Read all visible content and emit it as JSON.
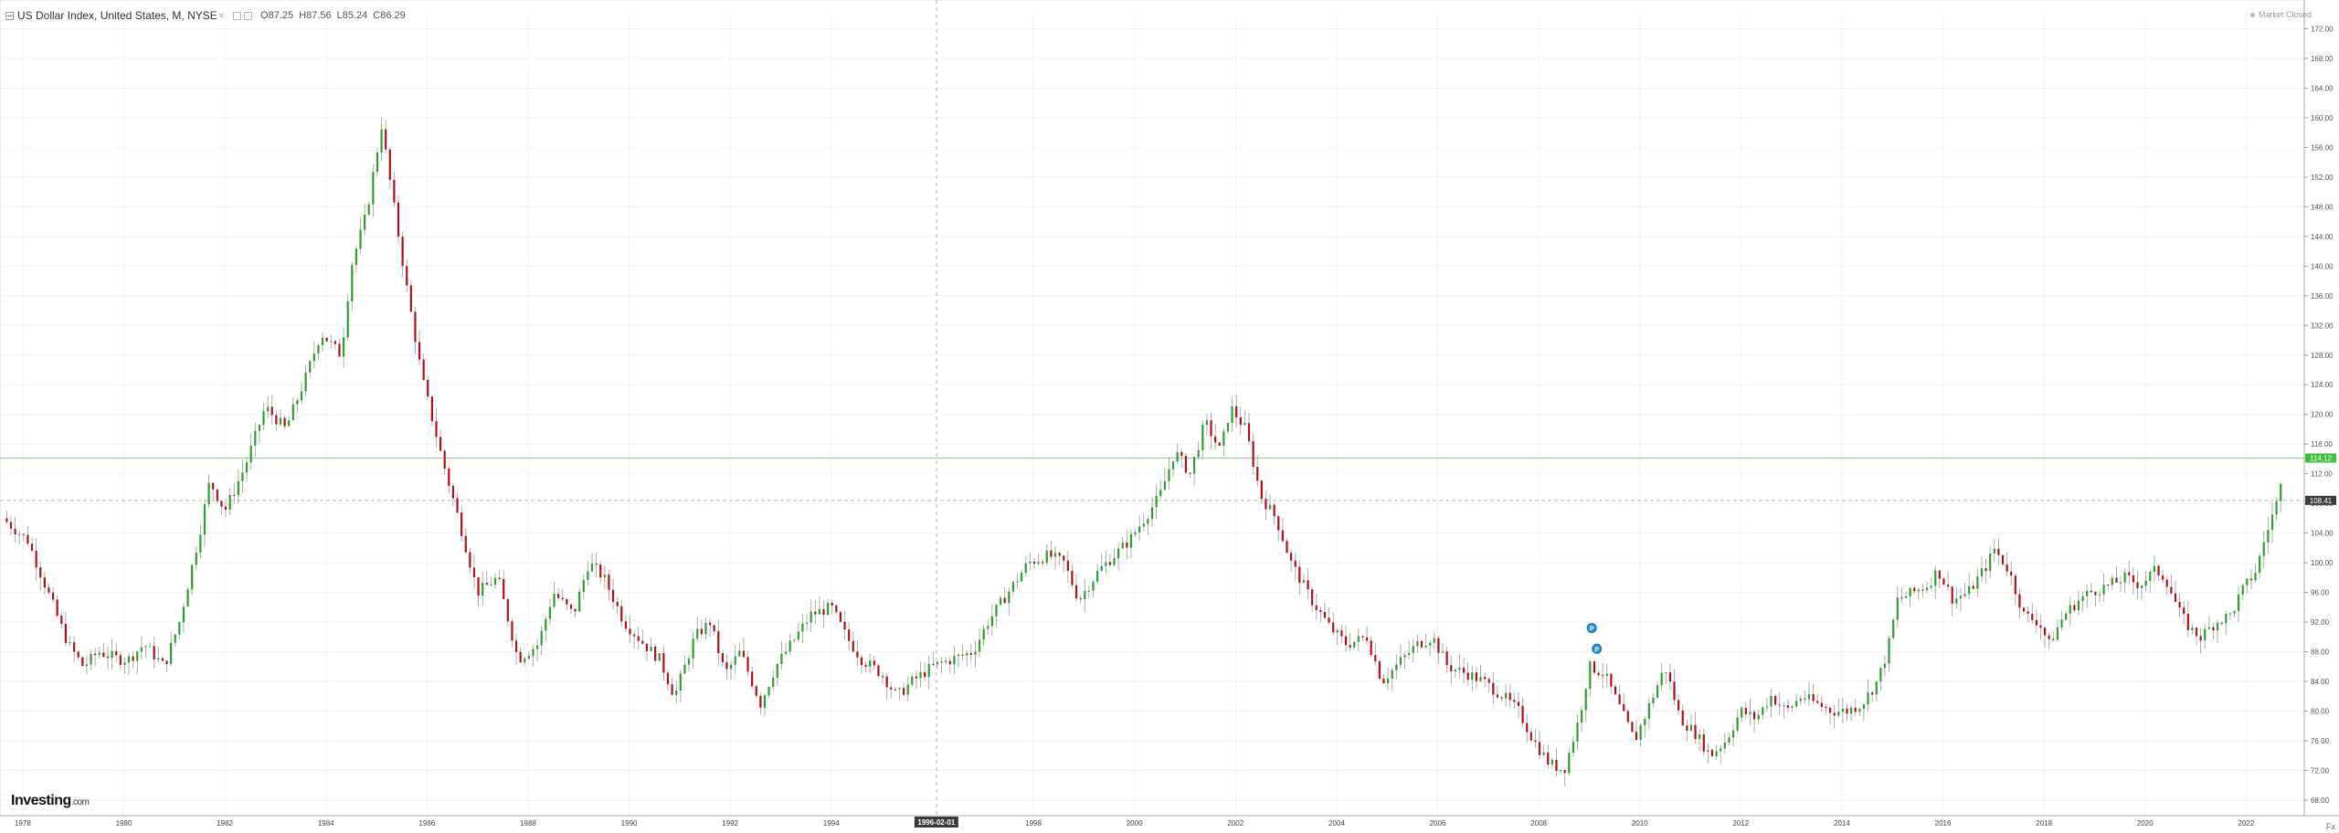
{
  "header": {
    "title": "US Dollar Index, United States, M, NYSE",
    "open": "O87.25",
    "high": "H87.56",
    "low": "L85.24",
    "close": "C86.29"
  },
  "status": {
    "label": "Market Closed"
  },
  "brand": {
    "name": "Investing",
    "suffix": ".com"
  },
  "scale_mode": "Fx",
  "colors": {
    "up": "#2ba02b",
    "down": "#b01018",
    "last_line": "#8ed08e",
    "last_tag": "#3fbf3f",
    "prev_tag": "#3c3c3c",
    "crosshair_tag": "#3a3a3a"
  },
  "chart_data": {
    "type": "candlestick",
    "interval": "monthly",
    "xlim": [
      1977.55,
      2023.15
    ],
    "ylim": [
      65.9,
      172.8
    ],
    "y_ticks": [
      "68.00",
      "72.00",
      "76.00",
      "80.00",
      "84.00",
      "88.00",
      "92.00",
      "96.00",
      "100.00",
      "104.00",
      "108.00",
      "112.00",
      "116.00",
      "120.00",
      "124.00",
      "128.00",
      "132.00",
      "136.00",
      "140.00",
      "144.00",
      "148.00",
      "152.00",
      "156.00",
      "160.00",
      "164.00",
      "168.00",
      "172.00"
    ],
    "x_ticks": [
      {
        "label": "1978",
        "x": 1978
      },
      {
        "label": "1980",
        "x": 1980
      },
      {
        "label": "1982",
        "x": 1982
      },
      {
        "label": "1984",
        "x": 1984
      },
      {
        "label": "1986",
        "x": 1986
      },
      {
        "label": "1988",
        "x": 1988
      },
      {
        "label": "1990",
        "x": 1990
      },
      {
        "label": "1992",
        "x": 1992
      },
      {
        "label": "1994",
        "x": 1994
      },
      {
        "label": "1998",
        "x": 1998
      },
      {
        "label": "2000",
        "x": 2000
      },
      {
        "label": "2002",
        "x": 2002
      },
      {
        "label": "2004",
        "x": 2004
      },
      {
        "label": "2006",
        "x": 2006
      },
      {
        "label": "2008",
        "x": 2008
      },
      {
        "label": "2010",
        "x": 2010
      },
      {
        "label": "2012",
        "x": 2012
      },
      {
        "label": "2014",
        "x": 2014
      },
      {
        "label": "2016",
        "x": 2016
      },
      {
        "label": "2018",
        "x": 2018
      },
      {
        "label": "2020",
        "x": 2020
      },
      {
        "label": "2022",
        "x": 2022
      }
    ],
    "crosshair": {
      "x": 1996.08,
      "label": "1996-02-01"
    },
    "last_price": {
      "value": 114.12,
      "label": "114.12"
    },
    "prev_close": {
      "value": 108.41,
      "label": "108.41"
    },
    "markers": [
      {
        "x": 2009.05,
        "y": 91.2,
        "label": "P"
      },
      {
        "x": 2009.15,
        "y": 88.4,
        "label": "P"
      }
    ],
    "closes": [
      [
        1977.6,
        106
      ],
      [
        1978.1,
        103
      ],
      [
        1978.5,
        96
      ],
      [
        1978.9,
        89
      ],
      [
        1979.2,
        86
      ],
      [
        1979.5,
        88
      ],
      [
        1979.9,
        87
      ],
      [
        1980.1,
        87
      ],
      [
        1980.4,
        89
      ],
      [
        1980.8,
        86
      ],
      [
        1981.1,
        92
      ],
      [
        1981.5,
        104
      ],
      [
        1981.7,
        111
      ],
      [
        1982.0,
        107
      ],
      [
        1982.4,
        113
      ],
      [
        1982.8,
        121
      ],
      [
        1983.2,
        118
      ],
      [
        1983.6,
        125
      ],
      [
        1983.9,
        131
      ],
      [
        1984.3,
        128
      ],
      [
        1984.5,
        140
      ],
      [
        1984.8,
        147
      ],
      [
        1985.1,
        159
      ],
      [
        1985.3,
        150
      ],
      [
        1985.6,
        137
      ],
      [
        1985.9,
        125
      ],
      [
        1986.3,
        114
      ],
      [
        1986.7,
        104
      ],
      [
        1987.0,
        96
      ],
      [
        1987.4,
        98
      ],
      [
        1987.8,
        87
      ],
      [
        1988.2,
        89
      ],
      [
        1988.5,
        96
      ],
      [
        1988.9,
        93
      ],
      [
        1989.2,
        100
      ],
      [
        1989.5,
        98
      ],
      [
        1989.9,
        92
      ],
      [
        1990.3,
        89
      ],
      [
        1990.6,
        87
      ],
      [
        1990.9,
        82
      ],
      [
        1991.3,
        90
      ],
      [
        1991.6,
        92
      ],
      [
        1991.9,
        85
      ],
      [
        1992.2,
        88
      ],
      [
        1992.6,
        81
      ],
      [
        1992.9,
        86
      ],
      [
        1993.2,
        89
      ],
      [
        1993.6,
        93
      ],
      [
        1994.0,
        94
      ],
      [
        1994.3,
        90
      ],
      [
        1994.6,
        87
      ],
      [
        1995.0,
        85
      ],
      [
        1995.3,
        82
      ],
      [
        1995.6,
        84
      ],
      [
        1996.0,
        86
      ],
      [
        1996.4,
        87
      ],
      [
        1996.8,
        88
      ],
      [
        1997.1,
        92
      ],
      [
        1997.5,
        96
      ],
      [
        1997.9,
        100
      ],
      [
        1998.3,
        101
      ],
      [
        1998.6,
        100
      ],
      [
        1998.9,
        95
      ],
      [
        1999.3,
        99
      ],
      [
        1999.6,
        101
      ],
      [
        1999.9,
        103
      ],
      [
        2000.2,
        106
      ],
      [
        2000.5,
        109
      ],
      [
        2000.8,
        115
      ],
      [
        2001.1,
        112
      ],
      [
        2001.4,
        119
      ],
      [
        2001.7,
        115
      ],
      [
        2001.9,
        121
      ],
      [
        2002.2,
        118
      ],
      [
        2002.5,
        109
      ],
      [
        2002.8,
        106
      ],
      [
        2003.1,
        100
      ],
      [
        2003.5,
        95
      ],
      [
        2003.9,
        91
      ],
      [
        2004.2,
        89
      ],
      [
        2004.6,
        90
      ],
      [
        2004.9,
        84
      ],
      [
        2005.3,
        87
      ],
      [
        2005.6,
        89
      ],
      [
        2005.9,
        90
      ],
      [
        2006.2,
        86
      ],
      [
        2006.6,
        85
      ],
      [
        2006.9,
        84
      ],
      [
        2007.3,
        82
      ],
      [
        2007.6,
        80
      ],
      [
        2007.9,
        76
      ],
      [
        2008.2,
        73
      ],
      [
        2008.5,
        72
      ],
      [
        2008.8,
        79
      ],
      [
        2009.0,
        86
      ],
      [
        2009.3,
        85
      ],
      [
        2009.7,
        79
      ],
      [
        2009.9,
        76
      ],
      [
        2010.2,
        81
      ],
      [
        2010.5,
        86
      ],
      [
        2010.8,
        79
      ],
      [
        2011.1,
        77
      ],
      [
        2011.4,
        74
      ],
      [
        2011.7,
        76
      ],
      [
        2012.0,
        80
      ],
      [
        2012.3,
        79
      ],
      [
        2012.6,
        82
      ],
      [
        2012.9,
        80
      ],
      [
        2013.2,
        82
      ],
      [
        2013.5,
        81
      ],
      [
        2013.8,
        80
      ],
      [
        2014.1,
        80
      ],
      [
        2014.4,
        81
      ],
      [
        2014.7,
        84
      ],
      [
        2014.9,
        88
      ],
      [
        2015.1,
        95
      ],
      [
        2015.4,
        96
      ],
      [
        2015.7,
        97
      ],
      [
        2015.9,
        99
      ],
      [
        2016.2,
        95
      ],
      [
        2016.5,
        96
      ],
      [
        2016.9,
        100
      ],
      [
        2017.0,
        102
      ],
      [
        2017.3,
        99
      ],
      [
        2017.6,
        93
      ],
      [
        2017.9,
        92
      ],
      [
        2018.1,
        89
      ],
      [
        2018.4,
        93
      ],
      [
        2018.7,
        95
      ],
      [
        2018.9,
        96
      ],
      [
        2019.3,
        97
      ],
      [
        2019.6,
        98
      ],
      [
        2019.9,
        97
      ],
      [
        2020.2,
        99
      ],
      [
        2020.4,
        98
      ],
      [
        2020.7,
        93
      ],
      [
        2020.9,
        91
      ],
      [
        2021.1,
        90
      ],
      [
        2021.4,
        92
      ],
      [
        2021.7,
        93
      ],
      [
        2021.9,
        96
      ],
      [
        2022.2,
        99
      ],
      [
        2022.4,
        104
      ],
      [
        2022.6,
        108
      ],
      [
        2022.75,
        114
      ]
    ]
  }
}
